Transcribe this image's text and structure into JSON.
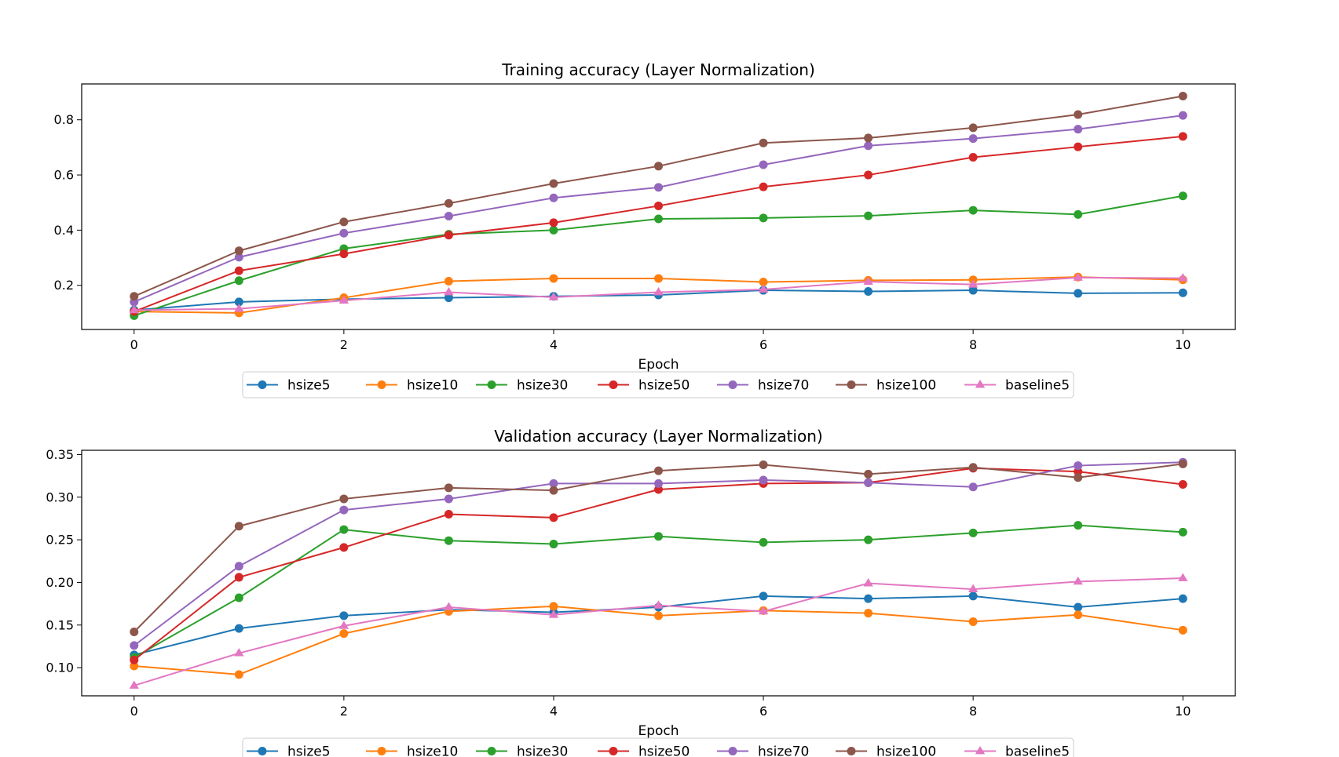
{
  "chart_data": [
    {
      "type": "line",
      "title": "Training accuracy (Layer Normalization)",
      "xlabel": "Epoch",
      "ylabel": "",
      "x": [
        0,
        1,
        2,
        3,
        4,
        5,
        6,
        7,
        8,
        9,
        10
      ],
      "xlim": [
        -0.5,
        10.5
      ],
      "ylim": [
        0.04,
        0.93
      ],
      "xticks": [
        0,
        2,
        4,
        6,
        8,
        10
      ],
      "yticks": [
        0.2,
        0.4,
        0.6,
        0.8
      ],
      "ytick_labels": [
        "0.2",
        "0.4",
        "0.6",
        "0.8"
      ],
      "legend_position": "bottom-center",
      "series": [
        {
          "name": "hsize5",
          "color": "#1f77b4",
          "marker": "circle",
          "values": [
            0.11,
            0.14,
            0.15,
            0.155,
            0.16,
            0.165,
            0.182,
            0.178,
            0.182,
            0.171,
            0.173
          ]
        },
        {
          "name": "hsize10",
          "color": "#ff7f0e",
          "marker": "circle",
          "values": [
            0.105,
            0.1,
            0.155,
            0.215,
            0.225,
            0.225,
            0.212,
            0.218,
            0.22,
            0.23,
            0.22
          ]
        },
        {
          "name": "hsize30",
          "color": "#2ca02c",
          "marker": "circle",
          "values": [
            0.09,
            0.217,
            0.333,
            0.385,
            0.4,
            0.441,
            0.444,
            0.452,
            0.472,
            0.457,
            0.524
          ]
        },
        {
          "name": "hsize50",
          "color": "#d62728",
          "marker": "circle",
          "values": [
            0.105,
            0.253,
            0.314,
            0.382,
            0.427,
            0.488,
            0.557,
            0.6,
            0.664,
            0.702,
            0.74
          ]
        },
        {
          "name": "hsize70",
          "color": "#9467bd",
          "marker": "circle",
          "values": [
            0.14,
            0.302,
            0.389,
            0.451,
            0.517,
            0.555,
            0.637,
            0.706,
            0.732,
            0.766,
            0.816
          ]
        },
        {
          "name": "hsize100",
          "color": "#8c564b",
          "marker": "circle",
          "values": [
            0.16,
            0.325,
            0.43,
            0.497,
            0.569,
            0.632,
            0.716,
            0.734,
            0.771,
            0.819,
            0.886
          ]
        },
        {
          "name": "baseline5",
          "color": "#e377c2",
          "marker": "triangle",
          "values": [
            0.11,
            0.115,
            0.145,
            0.175,
            0.157,
            0.175,
            0.185,
            0.213,
            0.203,
            0.228,
            0.226
          ]
        }
      ]
    },
    {
      "type": "line",
      "title": "Validation accuracy (Layer Normalization)",
      "xlabel": "Epoch",
      "ylabel": "",
      "x": [
        0,
        1,
        2,
        3,
        4,
        5,
        6,
        7,
        8,
        9,
        10
      ],
      "xlim": [
        -0.5,
        10.5
      ],
      "ylim": [
        0.067,
        0.355
      ],
      "xticks": [
        0,
        2,
        4,
        6,
        8,
        10
      ],
      "yticks": [
        0.1,
        0.15,
        0.2,
        0.25,
        0.3,
        0.35
      ],
      "ytick_labels": [
        "0.10",
        "0.15",
        "0.20",
        "0.25",
        "0.30",
        "0.35"
      ],
      "legend_position": "bottom-center",
      "series": [
        {
          "name": "hsize5",
          "color": "#1f77b4",
          "marker": "circle",
          "values": [
            0.115,
            0.146,
            0.161,
            0.168,
            0.165,
            0.171,
            0.184,
            0.181,
            0.184,
            0.171,
            0.181
          ]
        },
        {
          "name": "hsize10",
          "color": "#ff7f0e",
          "marker": "circle",
          "values": [
            0.102,
            0.092,
            0.14,
            0.166,
            0.172,
            0.161,
            0.167,
            0.164,
            0.154,
            0.162,
            0.144
          ]
        },
        {
          "name": "hsize30",
          "color": "#2ca02c",
          "marker": "circle",
          "values": [
            0.112,
            0.182,
            0.262,
            0.249,
            0.245,
            0.254,
            0.247,
            0.25,
            0.258,
            0.267,
            0.259
          ]
        },
        {
          "name": "hsize50",
          "color": "#d62728",
          "marker": "circle",
          "values": [
            0.109,
            0.206,
            0.241,
            0.28,
            0.276,
            0.309,
            0.316,
            0.317,
            0.334,
            0.33,
            0.315
          ]
        },
        {
          "name": "hsize70",
          "color": "#9467bd",
          "marker": "circle",
          "values": [
            0.126,
            0.219,
            0.285,
            0.298,
            0.316,
            0.316,
            0.32,
            0.317,
            0.312,
            0.337,
            0.341
          ]
        },
        {
          "name": "hsize100",
          "color": "#8c564b",
          "marker": "circle",
          "values": [
            0.142,
            0.266,
            0.298,
            0.311,
            0.308,
            0.331,
            0.338,
            0.327,
            0.335,
            0.323,
            0.339
          ]
        },
        {
          "name": "baseline5",
          "color": "#e377c2",
          "marker": "triangle",
          "values": [
            0.079,
            0.117,
            0.149,
            0.171,
            0.162,
            0.173,
            0.166,
            0.199,
            0.192,
            0.201,
            0.205
          ]
        }
      ]
    }
  ]
}
